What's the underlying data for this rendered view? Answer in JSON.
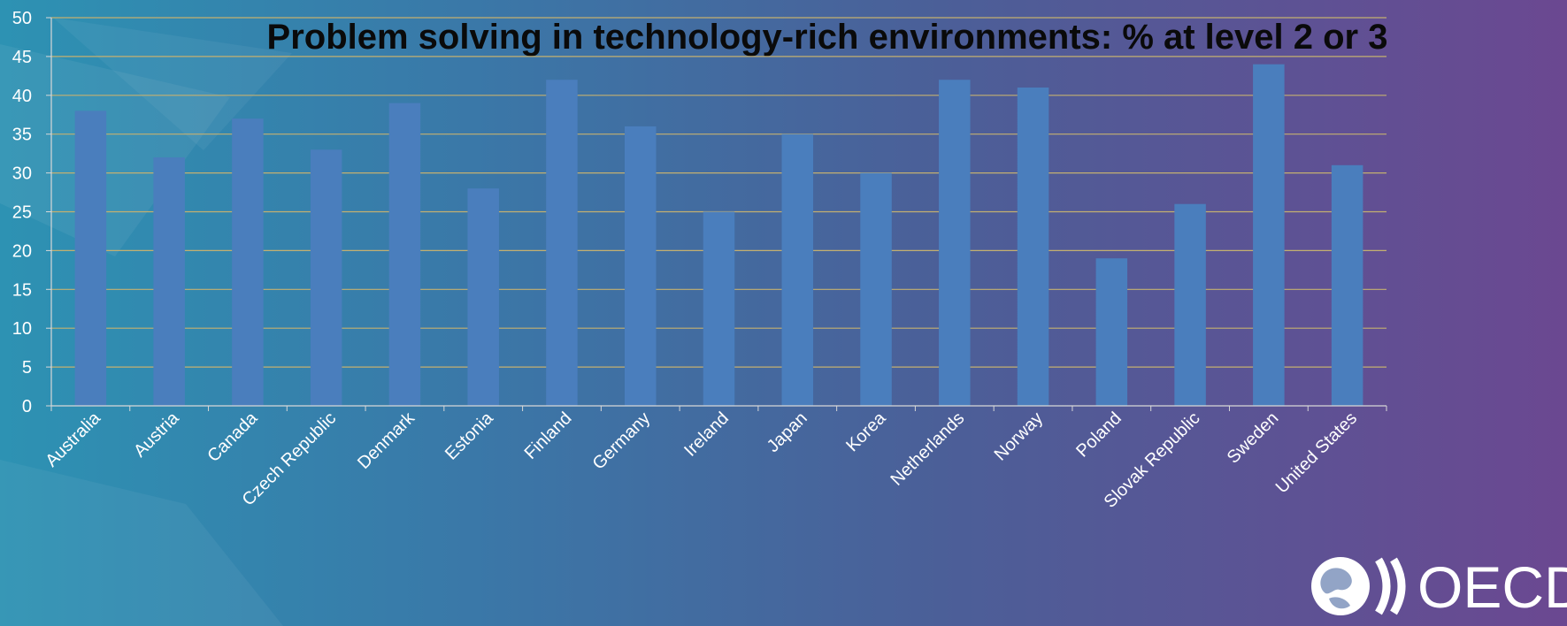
{
  "colors": {
    "bar": "#4a7ebd",
    "gridline": "#c4b070",
    "axis": "#d8d8d8",
    "text": "#ffffff",
    "title": "#0a0a0a"
  },
  "logo": {
    "text": "OECD",
    "icon": "oecd-globe-icon"
  },
  "chart_data": {
    "type": "bar",
    "title": "Problem solving in technology-rich environments: % at level 2 or 3",
    "xlabel": "",
    "ylabel": "",
    "ylim": [
      0,
      50
    ],
    "yticks": [
      0,
      5,
      10,
      15,
      20,
      25,
      30,
      35,
      40,
      45,
      50
    ],
    "grid": true,
    "legend": "none",
    "categories": [
      "Australia",
      "Austria",
      "Canada",
      "Czech Republic",
      "Denmark",
      "Estonia",
      "Finland",
      "Germany",
      "Ireland",
      "Japan",
      "Korea",
      "Netherlands",
      "Norway",
      "Poland",
      "Slovak Republic",
      "Sweden",
      "United States"
    ],
    "values": [
      38,
      32,
      37,
      33,
      39,
      28,
      42,
      36,
      25,
      35,
      30,
      42,
      41,
      19,
      26,
      44,
      31
    ]
  }
}
